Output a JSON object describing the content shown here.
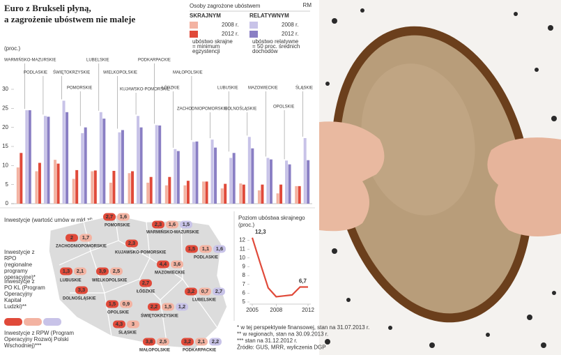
{
  "header": {
    "title_lines": [
      "Euro z Brukseli płyną,",
      "a zagrożenie ubóstwem nie maleje"
    ],
    "credit": "RM",
    "unit": "(proc.)"
  },
  "legend": {
    "title": "Osoby zagrożone ubóstwem",
    "groups": [
      {
        "name": "SKRAJNYM",
        "note_lines": [
          "ubóstwo skrajne",
          "= minimum",
          "egzystencji"
        ]
      },
      {
        "name": "RELATYWNYM",
        "note_lines": [
          "ubóstwo relatywne",
          "= 50 proc. średnich",
          "dochodów"
        ]
      }
    ]
  },
  "chart_data": [
    {
      "type": "bar",
      "categories": [
        "WARMIŃSKO-MAZURSKIE",
        "PODLASKIE",
        "ŚWIĘTOKRZYSKIE",
        "POMORSKIE",
        "LUBELSKIE",
        "WIELKOPOLSKIE",
        "KUJAWSKO-POMORSKIE",
        "PODKARPACKIE",
        "ŁÓDZKIE",
        "MAŁOPOLSKIE",
        "ZACHODNIOPOMORSKIE",
        "LUBUSKIE",
        "DOLNOŚLĄSKIE",
        "MAZOWIECKIE",
        "OPOLSKIE",
        "ŚLĄSKIE"
      ],
      "series": [
        {
          "name": "2008 r.",
          "group": 0,
          "color": "#f3b3a2",
          "values": [
            9.5,
            8.5,
            11.5,
            6.5,
            8.5,
            5.5,
            8,
            5.5,
            4.8,
            4.8,
            5.8,
            4,
            5.3,
            3.5,
            2.7,
            4.6
          ]
        },
        {
          "name": "2012 r.",
          "group": 0,
          "color": "#e04a3a",
          "values": [
            13.3,
            10.7,
            10.5,
            8.8,
            8.7,
            8.6,
            8.5,
            7,
            7,
            6,
            5.8,
            5.2,
            5,
            5,
            5,
            4.6
          ]
        },
        {
          "name": "2008 r.",
          "group": 1,
          "color": "#c8c3e8",
          "values": [
            24.5,
            23,
            27,
            18.5,
            24,
            18.7,
            23,
            20.6,
            14.3,
            16.2,
            16.8,
            12,
            17.5,
            12,
            11.3,
            17.2
          ]
        },
        {
          "name": "2012 r.",
          "group": 1,
          "color": "#8a7fc4",
          "values": [
            24.5,
            22.8,
            24,
            20,
            22.3,
            19.3,
            20,
            20.5,
            13.8,
            16.3,
            14.7,
            13.3,
            14.5,
            11.6,
            10.3,
            11.4
          ]
        }
      ],
      "ylim": [
        0,
        30
      ],
      "yticks": [
        0,
        5,
        10,
        15,
        20,
        25,
        30
      ],
      "grid": false
    },
    {
      "type": "line",
      "title": "Poziom ubóstwa skrajnego (proc.)",
      "color": "#e04a3a",
      "x": [
        2005,
        2006,
        2007,
        2008,
        2009,
        2010,
        2011,
        2012
      ],
      "values": [
        12.3,
        9.4,
        6.6,
        5.6,
        5.7,
        5.8,
        6.7,
        6.7
      ],
      "value_labels": [
        "12,3",
        null,
        null,
        null,
        null,
        null,
        null,
        "6,7"
      ],
      "xlim": [
        2005,
        2012
      ],
      "xticks": [
        2005,
        2008,
        2012
      ],
      "ylim": [
        5,
        12.6
      ],
      "yticks": [
        5,
        6,
        7,
        8,
        9,
        10,
        11,
        12
      ],
      "grid": false
    }
  ],
  "map": {
    "title": "Inwestycje (wartość umów w mld zł)",
    "legend": [
      "Inwestycje z RPO (regionalne programy operacyjne)*",
      "Inwestycje z PO KL (Program Operacyjny Kapitał Ludzki)**",
      "Inwestycje z RPW (Program Operacyjny Rozwój Polski Wschodniej)***"
    ],
    "regions": [
      {
        "name": "POMORSKIE",
        "values": [
          "2,7",
          "1,6"
        ]
      },
      {
        "name": "WARMIŃSKO-MAZURSKIE",
        "values": [
          "2,3",
          "1,6",
          "1,5"
        ]
      },
      {
        "name": "ZACHODNIOPOMORSKIE",
        "values": [
          "2",
          "1,7"
        ]
      },
      {
        "name": "KUJAWSKO-POMORSKIE",
        "values": [
          "2,3"
        ]
      },
      {
        "name": "PODLASKIE",
        "values": [
          "1,5",
          "1,1",
          "1,6"
        ]
      },
      {
        "name": "MAZOWIECKIE",
        "values": [
          "4,4",
          "3,6"
        ]
      },
      {
        "name": "LUBUSKIE",
        "values": [
          "1,3",
          "2,1"
        ]
      },
      {
        "name": "WIELKOPOLSKIE",
        "values": [
          "3,9",
          "2,5"
        ]
      },
      {
        "name": "ŁÓDZKIE",
        "values": [
          "2,7"
        ]
      },
      {
        "name": "DOLNOŚLĄSKIE",
        "values": [
          "3,3"
        ]
      },
      {
        "name": "LUBELSKIE",
        "values": [
          "3,2",
          "0,7",
          "2,7"
        ]
      },
      {
        "name": "OPOLSKIE",
        "values": [
          "1,5",
          "0,9"
        ]
      },
      {
        "name": "ŚWIĘTOKRZYSKIE",
        "values": [
          "2,2",
          "1,5",
          "1,2"
        ]
      },
      {
        "name": "ŚLĄSKIE",
        "values": [
          "4,3",
          "3"
        ]
      },
      {
        "name": "MAŁOPOLSKIE",
        "values": [
          "3,8",
          "2,5"
        ]
      },
      {
        "name": "PODKARPACKIE",
        "values": [
          "3,2",
          "2,1",
          "2,2"
        ]
      }
    ]
  },
  "footnotes": [
    "* w tej perspektywie finansowej, stan na 31.07.2013 r.",
    "** w regionach, stan na 30.09.2013 r.",
    "*** stan na 31.12.2012 r.",
    "Źródło: GUS, MRR, wyliczenia DGP"
  ]
}
